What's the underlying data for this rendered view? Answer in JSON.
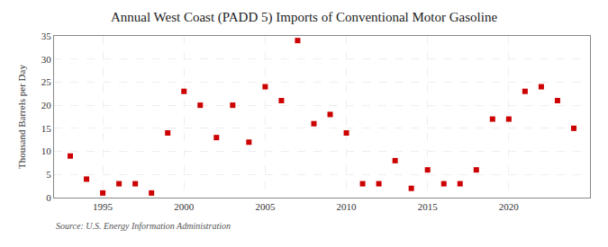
{
  "chart_data": {
    "type": "scatter",
    "title": "Annual West Coast (PADD 5) Imports of Conventional Motor Gasoline",
    "ylabel": "Thousand Barrels per Day",
    "annotations": [
      "Source: U.S. Energy Information Administration"
    ],
    "x": [
      1993,
      1994,
      1995,
      1996,
      1997,
      1998,
      1999,
      2000,
      2001,
      2002,
      2003,
      2004,
      2005,
      2006,
      2007,
      2008,
      2009,
      2010,
      2011,
      2012,
      2013,
      2014,
      2015,
      2016,
      2017,
      2018,
      2019,
      2020,
      2021,
      2022,
      2023,
      2024
    ],
    "values": [
      9,
      4,
      1,
      3,
      3,
      1,
      14,
      23,
      20,
      13,
      20,
      12,
      24,
      21,
      34,
      16,
      18,
      14,
      3,
      3,
      8,
      2,
      6,
      3,
      3,
      6,
      17,
      17,
      23,
      24,
      21,
      15
    ],
    "color": "#cc0000",
    "marker": "square",
    "xlim": [
      1992,
      2025
    ],
    "ylim": [
      0,
      35
    ],
    "xticks": [
      1995,
      2000,
      2005,
      2010,
      2015,
      2020
    ],
    "yticks": [
      0,
      5,
      10,
      15,
      20,
      25,
      30,
      35
    ],
    "grid": true
  }
}
